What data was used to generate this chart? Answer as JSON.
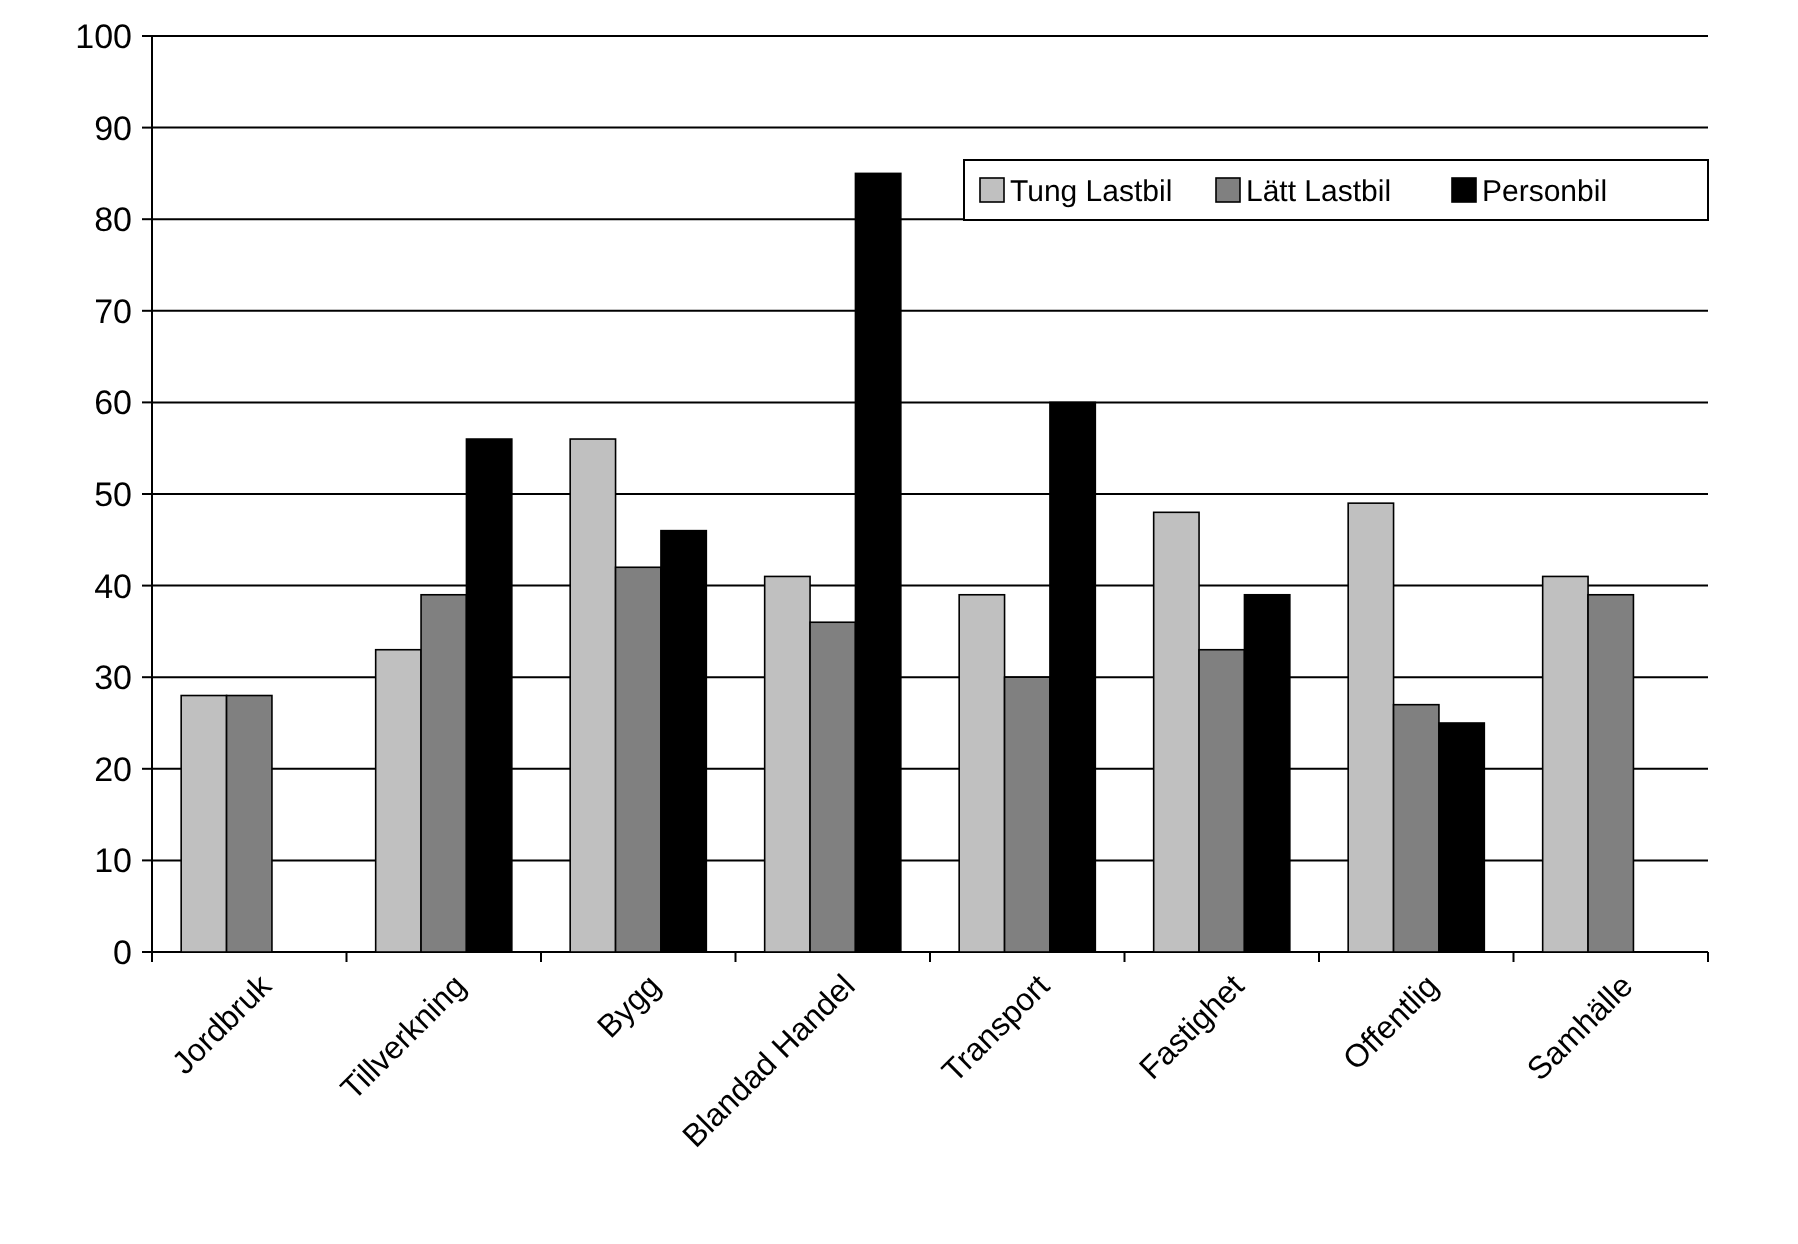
{
  "chart_data": {
    "type": "bar",
    "categories": [
      "Jordbruk",
      "Tillverkning",
      "Bygg",
      "Blandad Handel",
      "Transport",
      "Fastighet",
      "Offentlig",
      "Samhälle"
    ],
    "series": [
      {
        "name": "Tung Lastbil",
        "color": "#c0c0c0",
        "values": [
          28,
          33,
          56,
          41,
          39,
          48,
          49,
          41
        ]
      },
      {
        "name": "Lätt Lastbil",
        "color": "#808080",
        "values": [
          28,
          39,
          42,
          36,
          30,
          33,
          27,
          39
        ]
      },
      {
        "name": "Personbil",
        "color": "#000000",
        "values": [
          null,
          56,
          46,
          85,
          60,
          39,
          25,
          null
        ]
      }
    ],
    "ylim": [
      0,
      100
    ],
    "yticks": [
      0,
      10,
      20,
      30,
      40,
      50,
      60,
      70,
      80,
      90,
      100
    ],
    "grid": "y",
    "legend": "top right"
  }
}
